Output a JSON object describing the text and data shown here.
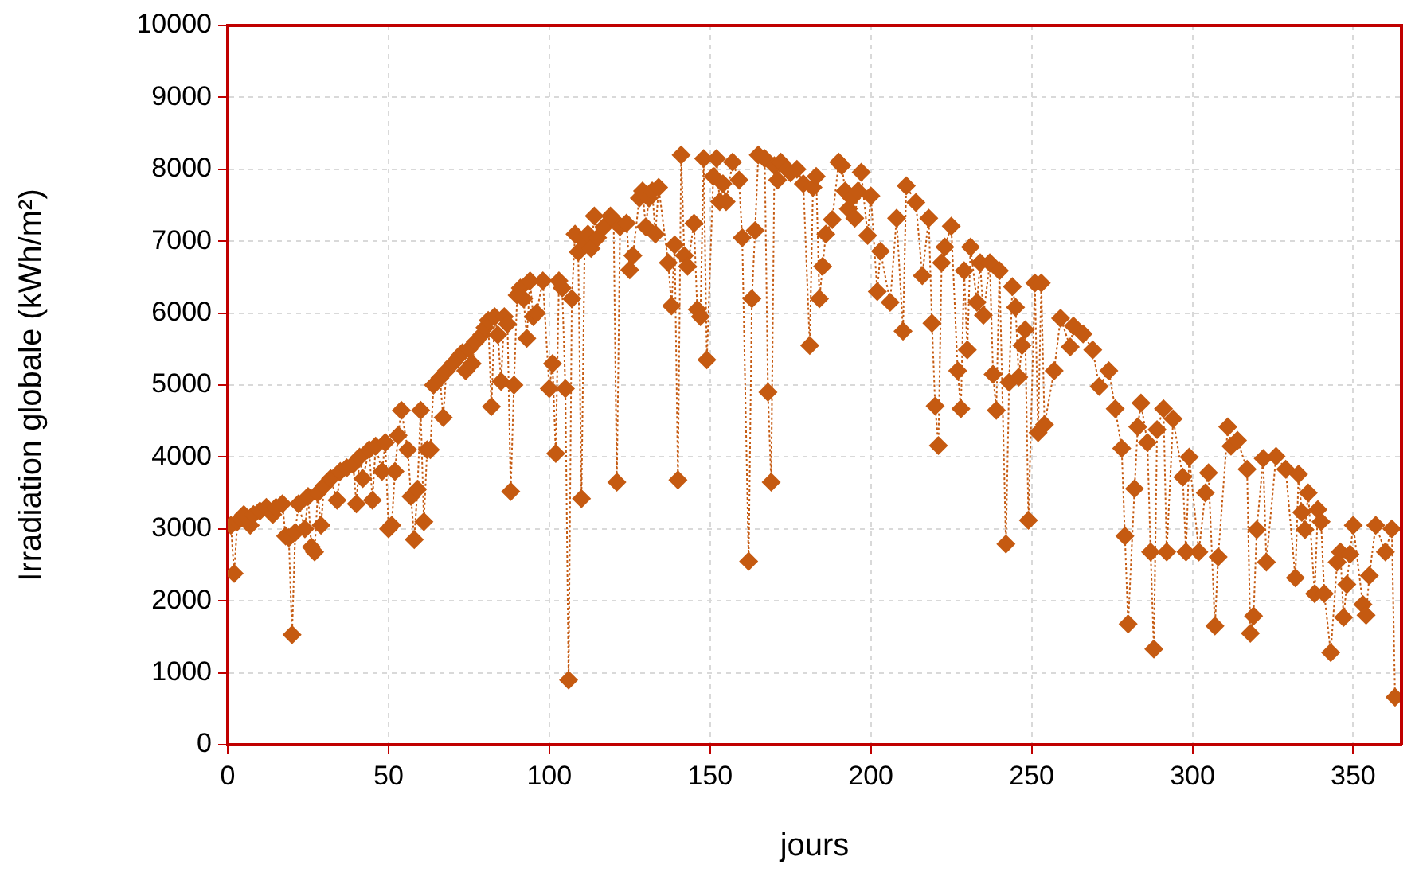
{
  "chart_data": {
    "type": "line",
    "xlabel": "jours",
    "ylabel": "Irradiation globale (kWh/m²)",
    "xlim": [
      0,
      365
    ],
    "xticks": [
      0,
      50,
      100,
      150,
      200,
      250,
      300,
      350
    ],
    "ylim": [
      0,
      10000
    ],
    "yticks": [
      0,
      1000,
      2000,
      3000,
      4000,
      5000,
      6000,
      7000,
      8000,
      9000,
      10000
    ],
    "grid": true,
    "legend": false,
    "marker": "diamond",
    "line_style": "dotted",
    "series": [
      {
        "color": "#c55a11",
        "x": [
          1,
          2,
          3,
          4,
          5,
          7,
          8,
          10,
          12,
          14,
          15,
          17,
          18,
          19,
          20,
          21,
          22,
          24,
          25,
          26,
          27,
          28,
          29,
          30,
          32,
          34,
          35,
          37,
          39,
          40,
          41,
          42,
          44,
          45,
          46,
          48,
          49,
          50,
          51,
          52,
          53,
          54,
          56,
          57,
          58,
          59,
          60,
          61,
          62,
          63,
          64,
          66,
          67,
          68,
          70,
          72,
          73,
          74,
          75,
          76,
          77,
          79,
          80,
          81,
          82,
          83,
          84,
          85,
          86,
          87,
          88,
          89,
          90,
          91,
          92,
          93,
          94,
          95,
          96,
          98,
          100,
          101,
          102,
          103,
          104,
          105,
          106,
          107,
          108,
          109,
          110,
          111,
          112,
          113,
          114,
          115,
          117,
          119,
          120,
          121,
          122,
          124,
          125,
          126,
          128,
          129,
          130,
          131,
          132,
          133,
          134,
          137,
          138,
          139,
          140,
          141,
          142,
          143,
          145,
          146,
          147,
          148,
          149,
          151,
          152,
          153,
          154,
          155,
          157,
          159,
          160,
          162,
          163,
          164,
          165,
          167,
          168,
          169,
          170,
          171,
          172,
          174,
          175,
          177,
          179,
          181,
          182,
          183,
          184,
          185,
          186,
          188,
          190,
          191,
          192,
          193,
          194,
          195,
          196,
          197,
          199,
          200,
          202,
          203,
          206,
          208,
          210,
          211,
          214,
          216,
          218,
          219,
          220,
          221,
          222,
          223,
          225,
          227,
          228,
          229,
          230,
          231,
          233,
          234,
          235,
          237,
          238,
          239,
          240,
          242,
          243,
          244,
          245,
          246,
          247,
          248,
          249,
          251,
          252,
          253,
          254,
          257,
          259,
          262,
          263,
          266,
          269,
          271,
          274,
          276,
          278,
          279,
          280,
          282,
          283,
          284,
          286,
          287,
          288,
          289,
          291,
          292,
          294,
          297,
          298,
          299,
          302,
          304,
          305,
          307,
          308,
          311,
          312,
          314,
          317,
          318,
          319,
          320,
          322,
          323,
          326,
          329,
          332,
          333,
          334,
          335,
          336,
          338,
          339,
          340,
          341,
          343,
          345,
          346,
          347,
          348,
          349,
          350,
          353,
          354,
          355,
          357,
          360,
          362,
          363
        ],
        "values": [
          3050,
          2380,
          3100,
          3150,
          3200,
          3050,
          3200,
          3250,
          3300,
          3200,
          3300,
          3350,
          2900,
          2880,
          1530,
          2950,
          3350,
          3000,
          3450,
          2750,
          2680,
          3500,
          3050,
          3600,
          3700,
          3400,
          3800,
          3850,
          3900,
          3350,
          4000,
          3700,
          4100,
          3400,
          4150,
          3800,
          4200,
          3000,
          3050,
          3800,
          4300,
          4650,
          4100,
          3450,
          2850,
          3550,
          4650,
          3100,
          4100,
          4100,
          5000,
          5100,
          4550,
          5200,
          5300,
          5400,
          5450,
          5200,
          5500,
          5300,
          5600,
          5700,
          5800,
          5900,
          4700,
          5950,
          5700,
          5050,
          5950,
          5850,
          3520,
          5000,
          6250,
          6350,
          6200,
          5650,
          6450,
          5950,
          6000,
          6450,
          4950,
          5300,
          4050,
          6450,
          6350,
          4950,
          900,
          6200,
          7100,
          6850,
          3420,
          7000,
          7100,
          6900,
          7350,
          7050,
          7200,
          7350,
          7300,
          3650,
          7200,
          7250,
          6600,
          6800,
          7600,
          7700,
          7200,
          7600,
          7700,
          7100,
          7750,
          6700,
          6100,
          6950,
          3680,
          8200,
          6800,
          6650,
          7250,
          6050,
          5950,
          8150,
          5350,
          7900,
          8150,
          7550,
          7800,
          7550,
          8100,
          7850,
          7050,
          2550,
          6200,
          7150,
          8200,
          8150,
          4900,
          3650,
          8050,
          7850,
          8100,
          8000,
          7950,
          8000,
          7800,
          5550,
          7750,
          7900,
          6200,
          6650,
          7100,
          7300,
          8100,
          8050,
          7700,
          7450,
          7600,
          7320,
          7700,
          7960,
          7080,
          7630,
          6300,
          6860,
          6150,
          7320,
          5750,
          7770,
          7540,
          6520,
          7320,
          5860,
          4710,
          4160,
          6700,
          6920,
          7210,
          5200,
          4670,
          6590,
          5490,
          6920,
          6150,
          6700,
          5970,
          6700,
          5150,
          4650,
          6590,
          2790,
          5040,
          6370,
          6080,
          5110,
          5550,
          5770,
          3120,
          6420,
          4340,
          6420,
          4450,
          5200,
          5930,
          5530,
          5820,
          5710,
          5490,
          4980,
          5200,
          4670,
          4120,
          2900,
          1680,
          3560,
          4420,
          4750,
          4200,
          2680,
          1330,
          4380,
          4670,
          2680,
          4530,
          3720,
          2680,
          4000,
          2680,
          3500,
          3780,
          1650,
          2610,
          4420,
          4150,
          4230,
          3830,
          1550,
          1790,
          2990,
          3980,
          2540,
          4010,
          3830,
          2320,
          3760,
          3230,
          2990,
          3500,
          2100,
          3270,
          3100,
          2100,
          1280,
          2540,
          2680,
          1770,
          2230,
          2650,
          3050,
          1950,
          1800,
          2350,
          3050,
          2680,
          3000,
          660
        ]
      }
    ]
  }
}
